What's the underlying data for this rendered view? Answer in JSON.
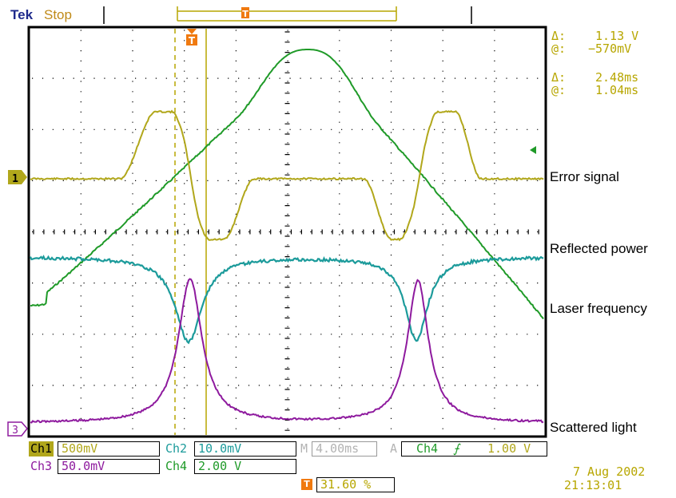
{
  "header": {
    "brand": "Tek",
    "state": "Stop"
  },
  "trigger_marker": "T",
  "colors": {
    "ch1": "#b1a71b",
    "ch2": "#1c9b9b",
    "ch3": "#8e1a9e",
    "ch4": "#1f9a28",
    "graticule": "#000000",
    "readout": "#b7a600"
  },
  "readouts": {
    "volt_delta_label": "Δ:",
    "volt_delta": "1.13 V",
    "volt_at_label": "@:",
    "volt_at": "−570mV",
    "time_delta_label": "Δ:",
    "time_delta": "2.48ms",
    "time_at_label": "@:",
    "time_at": "1.04ms"
  },
  "trace_labels": {
    "error_signal": "Error signal",
    "reflected_power": "Reflected power",
    "laser_frequency": "Laser frequency",
    "scattered_light": "Scattered light"
  },
  "channel_markers": {
    "ch1": "1",
    "ch3": "3"
  },
  "bottom": {
    "ch1_label": "Ch1",
    "ch1_scale": "500mV",
    "ch2_label": "Ch2",
    "ch2_scale": "10.0mV",
    "ch3_label": "Ch3",
    "ch3_scale": "50.0mV",
    "ch4_label": "Ch4",
    "ch4_scale": "2.00 V",
    "timebase_label": "M",
    "timebase": "4.00ms",
    "trigger_mode": "A",
    "trigger_source": "Ch4",
    "trigger_slope": "⨍",
    "trigger_level": "1.00 V",
    "trigger_pos_icon": "T",
    "trigger_pos": "31.60 %",
    "date": "7 Aug 2002",
    "time": "21:13:01"
  }
}
